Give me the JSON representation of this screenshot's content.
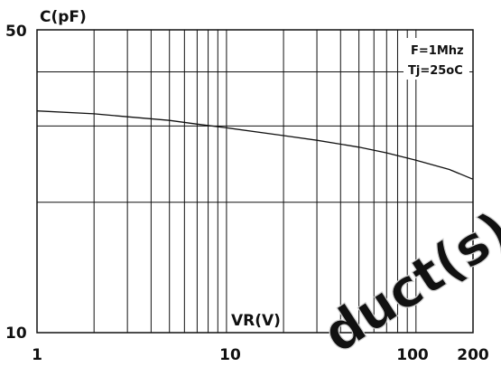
{
  "chart_data": {
    "type": "line",
    "title": "",
    "xlabel": "VR(V)",
    "ylabel": "C(pF)",
    "x_scale": "log",
    "y_scale": "log",
    "xlim": [
      1,
      200
    ],
    "ylim": [
      10,
      50
    ],
    "x_ticks": [
      "1",
      "10",
      "100",
      "200"
    ],
    "y_ticks": [
      "10",
      "50"
    ],
    "grid": true,
    "annotations": [
      "F=1Mhz",
      "Tj=25oC"
    ],
    "watermark": "duct(s)",
    "series": [
      {
        "x": [
          1,
          2,
          3,
          5,
          7,
          10,
          20,
          30,
          50,
          70,
          100,
          150,
          200
        ],
        "y": [
          32.5,
          32.0,
          31.5,
          30.9,
          30.3,
          29.7,
          28.5,
          27.8,
          26.8,
          26.0,
          25.0,
          23.8,
          22.6
        ]
      }
    ]
  }
}
